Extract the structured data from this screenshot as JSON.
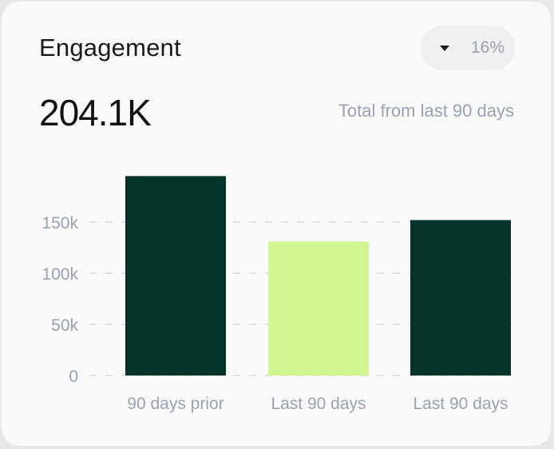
{
  "card": {
    "title": "Engagement",
    "change": {
      "icon": "caret-down-icon",
      "value": "16%"
    },
    "total": "204.1K",
    "subtitle": "Total from last 90 days"
  },
  "colors": {
    "dark_bar": "#06332a",
    "light_bar": "#d1f590",
    "text_muted": "#9aa1b3",
    "grid": "#d8dadf"
  },
  "chart_data": {
    "type": "bar",
    "categories": [
      "90 days prior",
      "Last 90 days",
      "Last 90 days"
    ],
    "values": [
      195000,
      131000,
      152000
    ],
    "bar_colors": [
      "#06332a",
      "#d1f590",
      "#06332a"
    ],
    "yticks": [
      0,
      50000,
      100000,
      150000
    ],
    "ytick_labels": [
      "0",
      "50k",
      "100k",
      "150k"
    ],
    "ylim": [
      0,
      200000
    ],
    "grid": true,
    "title": "",
    "xlabel": "",
    "ylabel": ""
  }
}
